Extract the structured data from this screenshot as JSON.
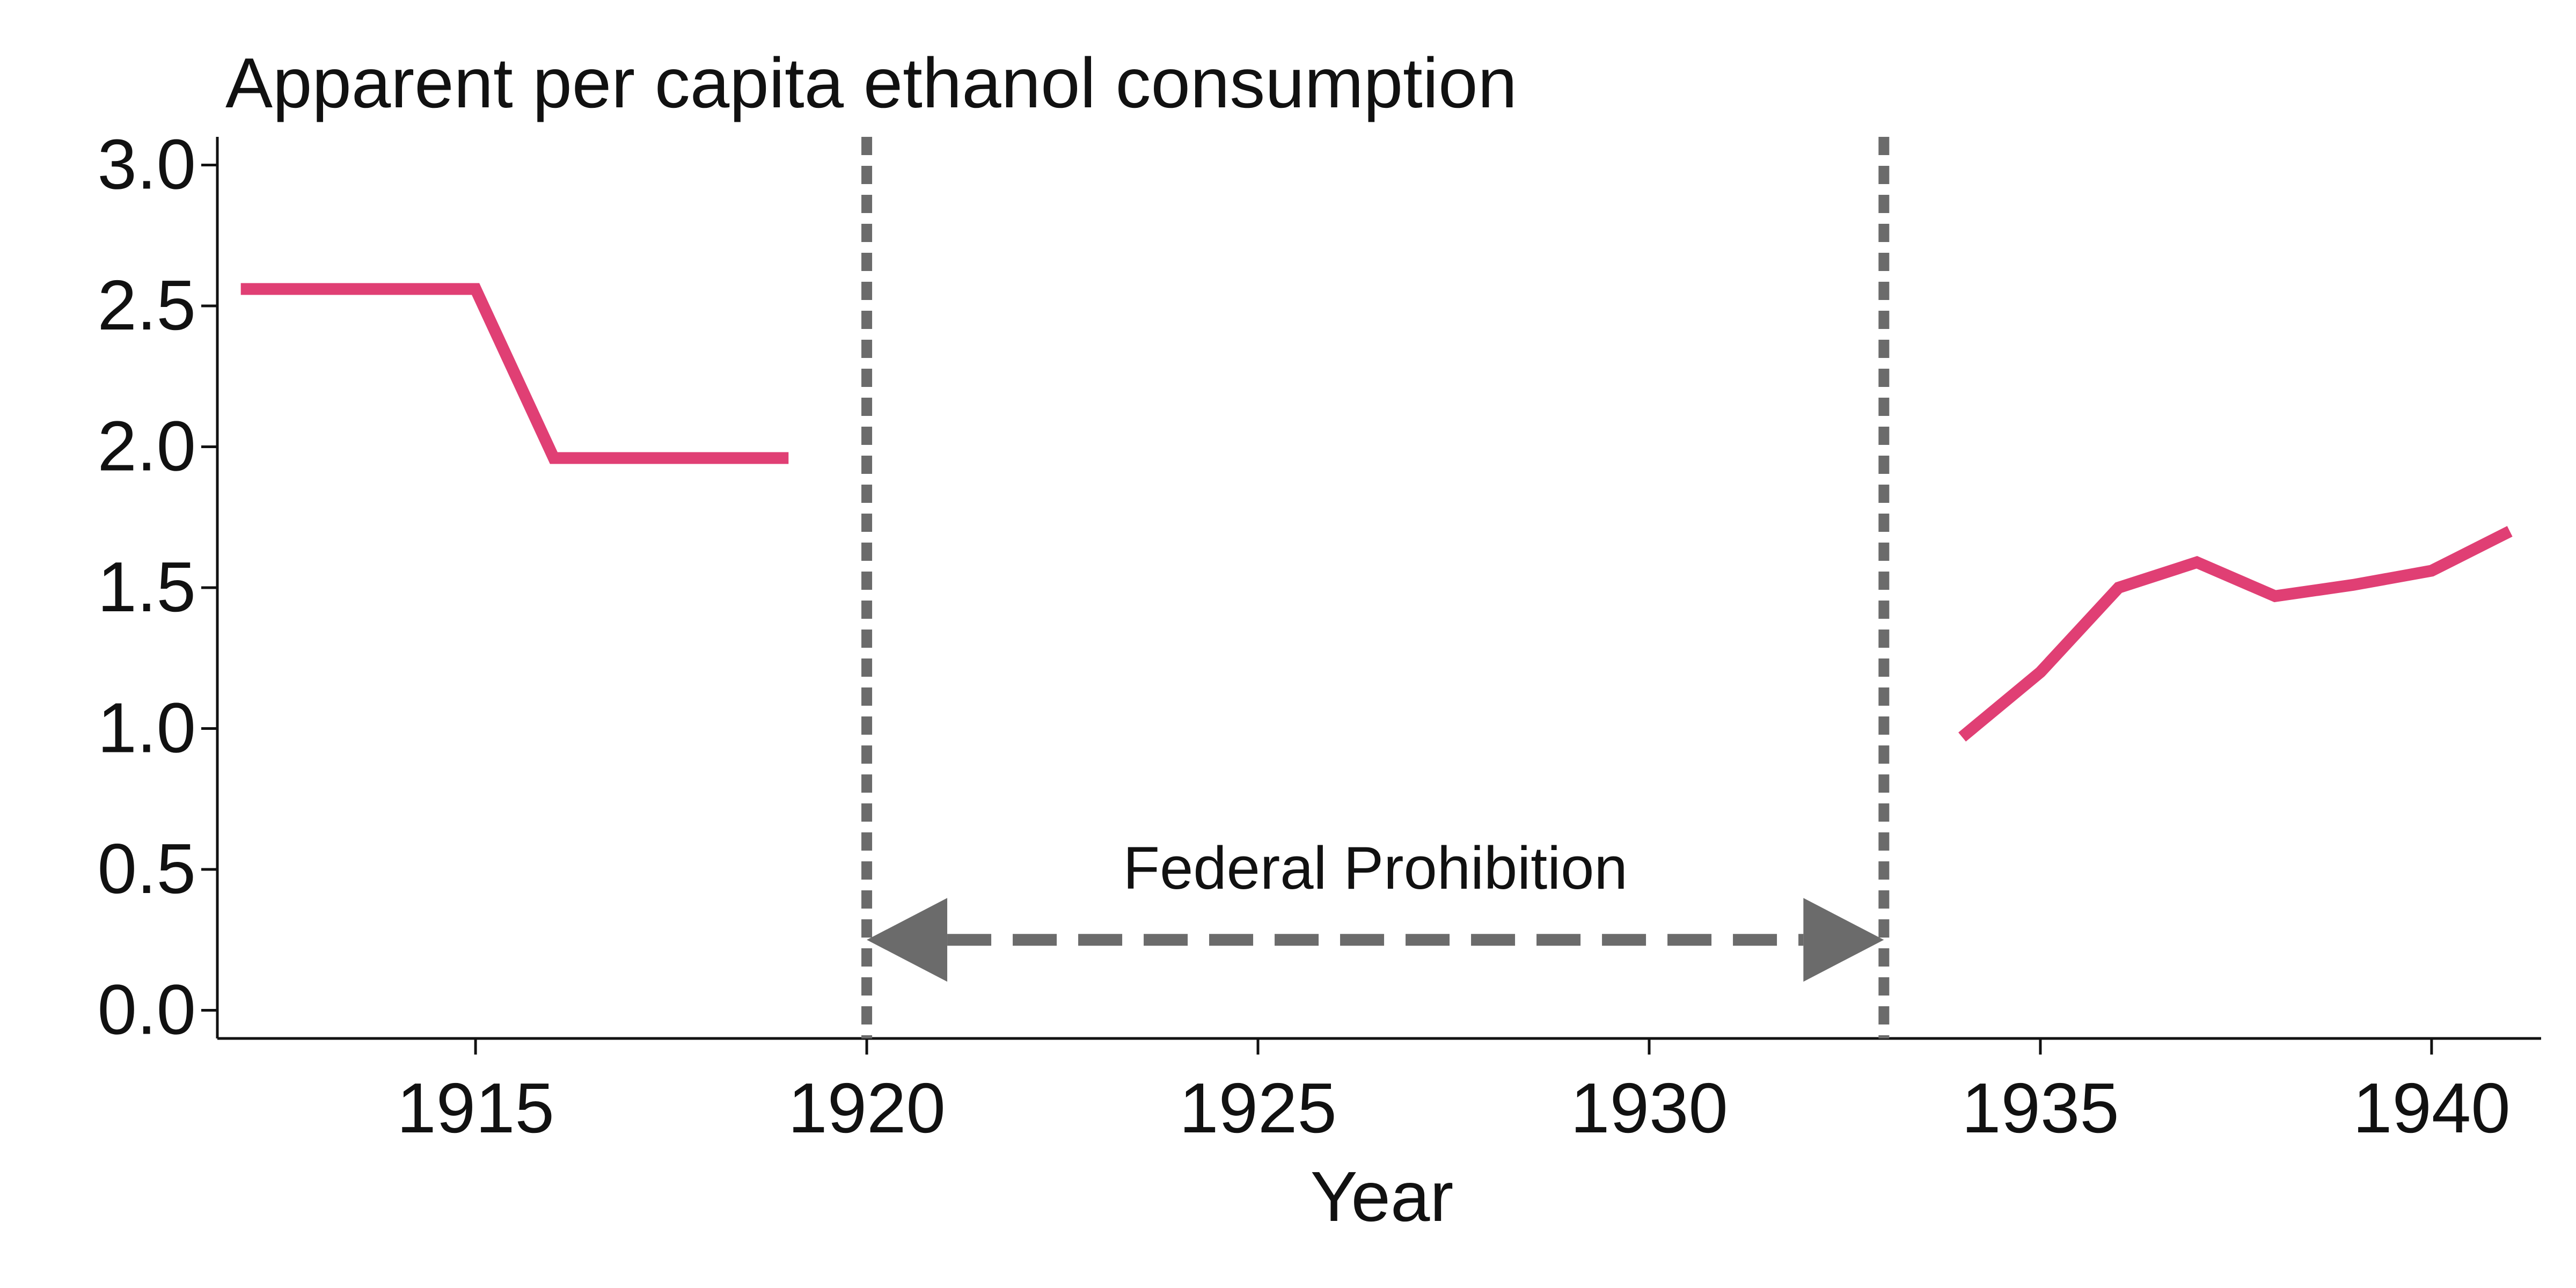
{
  "chart_data": {
    "type": "line",
    "title": "Apparent per capita ethanol consumption",
    "xlabel": "Year",
    "ylabel": "",
    "xlim": [
      1911.7,
      1941.4
    ],
    "ylim": [
      -0.1,
      3.1
    ],
    "x_ticks": [
      1915,
      1920,
      1925,
      1930,
      1935,
      1940
    ],
    "y_ticks": [
      0.0,
      0.5,
      1.0,
      1.5,
      2.0,
      2.5,
      3.0
    ],
    "y_tick_labels": [
      "0.0",
      "0.5",
      "1.0",
      "1.5",
      "2.0",
      "2.5",
      "3.0"
    ],
    "grid": false,
    "line_color": "#e03f74",
    "annotation_color": "#6b6b6b",
    "series": [
      {
        "segments": [
          {
            "x": [
              1912,
              1913,
              1914,
              1915,
              1916,
              1917,
              1918,
              1919
            ],
            "y": [
              2.56,
              2.56,
              2.56,
              2.56,
              1.96,
              1.96,
              1.96,
              1.96
            ]
          },
          {
            "x": [
              1934,
              1935,
              1936,
              1937,
              1938,
              1939,
              1940,
              1941
            ],
            "y": [
              0.97,
              1.2,
              1.5,
              1.59,
              1.47,
              1.51,
              1.56,
              1.7
            ]
          }
        ]
      }
    ],
    "vlines": [
      1920,
      1933
    ],
    "span_arrow": {
      "from": 1920,
      "to": 1933,
      "y": 0.25
    },
    "annotation": {
      "text": "Federal Prohibition",
      "x": 1926.5,
      "y": 0.5
    }
  }
}
